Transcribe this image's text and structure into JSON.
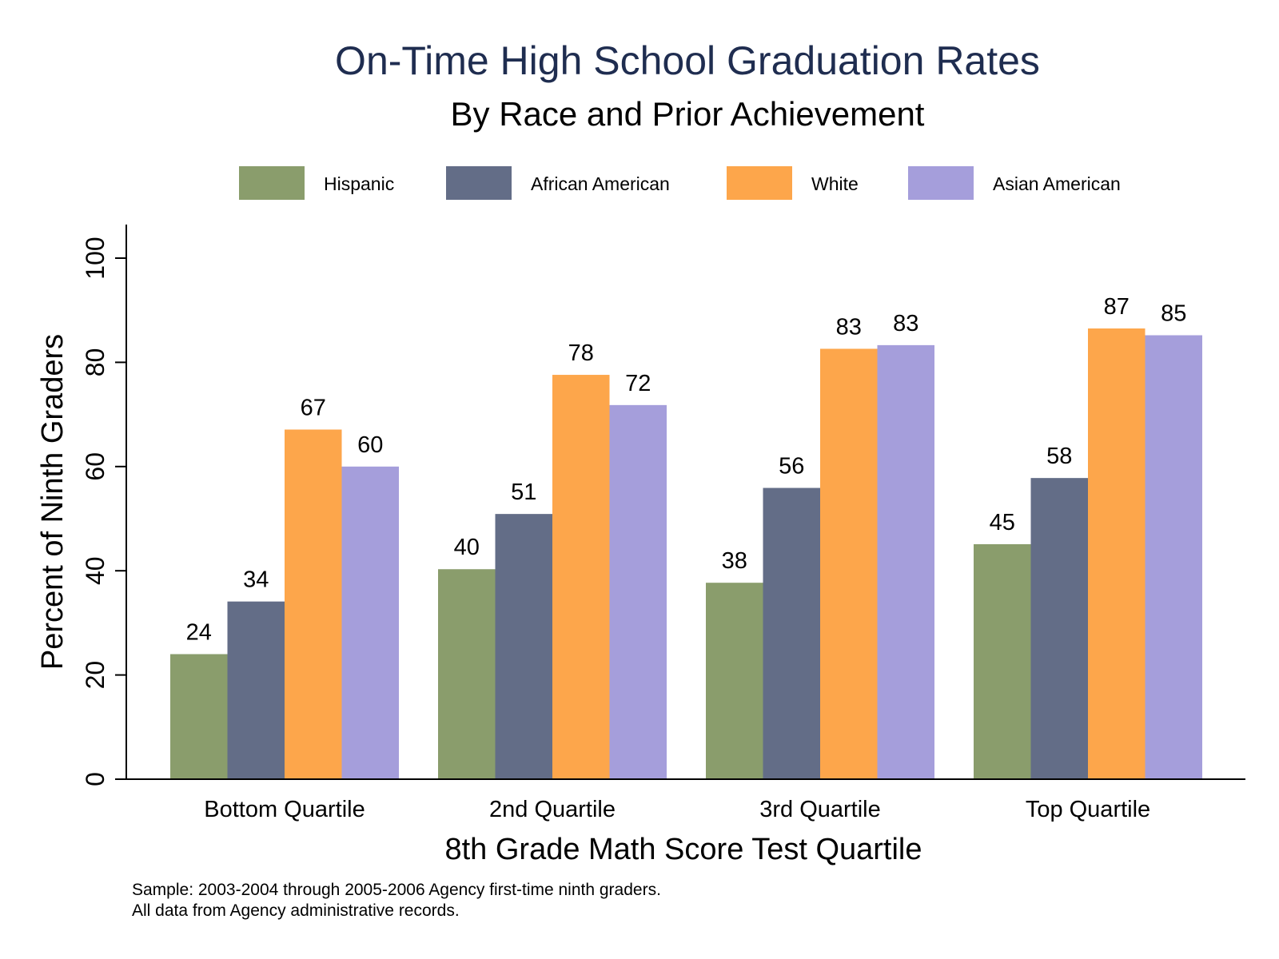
{
  "chart_data": {
    "type": "bar",
    "title": "On-Time High School Graduation Rates",
    "subtitle": "By Race and Prior Achievement",
    "xlabel": "8th Grade Math Score Test Quartile",
    "ylabel": "Percent of Ninth Graders",
    "categories": [
      "Bottom Quartile",
      "2nd Quartile",
      "3rd Quartile",
      "Top Quartile"
    ],
    "series": [
      {
        "name": "Hispanic",
        "color": "#8a9d6c",
        "values": [
          24,
          40,
          38,
          45
        ]
      },
      {
        "name": "African American",
        "color": "#636d87",
        "values": [
          34,
          51,
          56,
          58
        ]
      },
      {
        "name": "White",
        "color": "#fda64b",
        "values": [
          67,
          78,
          83,
          87
        ]
      },
      {
        "name": "Asian American",
        "color": "#a59edb",
        "values": [
          60,
          72,
          83,
          85
        ]
      }
    ],
    "bar_heights": [
      [
        24,
        40.3,
        37.7,
        45.1
      ],
      [
        34.1,
        50.9,
        55.9,
        57.8
      ],
      [
        67.1,
        77.6,
        82.6,
        86.5
      ],
      [
        60.0,
        71.8,
        83.3,
        85.2
      ]
    ],
    "ylim": [
      0,
      100
    ],
    "yticks": [
      "0",
      "20",
      "40",
      "60",
      "80",
      "100"
    ],
    "legend_position": "top",
    "grid": false,
    "notes": [
      "Sample: 2003-2004 through 2005-2006 Agency first-time ninth graders.",
      "All data from Agency administrative records."
    ]
  }
}
